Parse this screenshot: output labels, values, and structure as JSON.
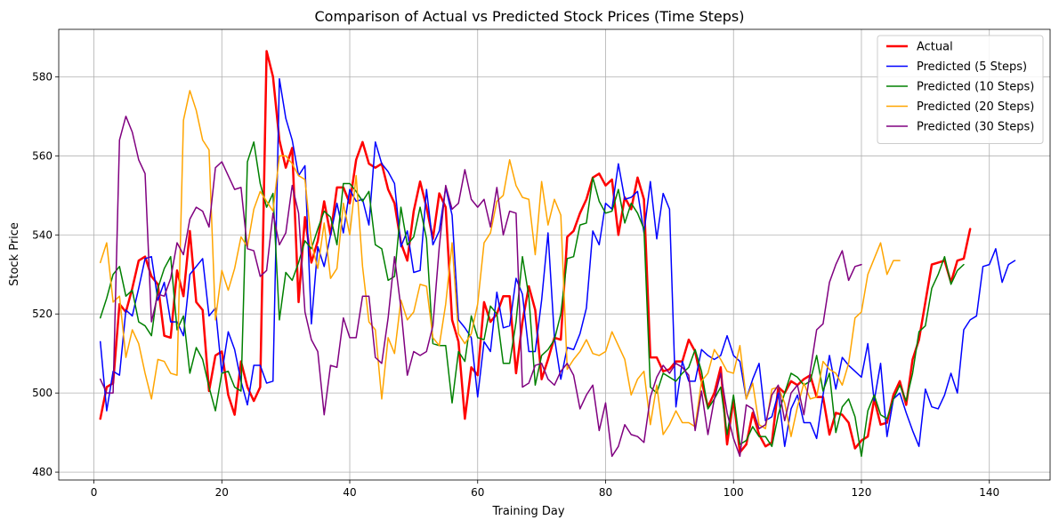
{
  "chart_data": {
    "type": "line",
    "title": "Comparison of Actual vs Predicted Stock Prices (Time Steps)",
    "xlabel": "Training Day",
    "ylabel": "Stock Price",
    "xlim": [
      -5.5,
      149.5
    ],
    "ylim": [
      478,
      592
    ],
    "x_ticks": [
      0,
      20,
      40,
      60,
      80,
      100,
      120,
      140
    ],
    "y_ticks": [
      480,
      500,
      520,
      540,
      560,
      580
    ],
    "grid": true,
    "legend_position": "top-right",
    "series": [
      {
        "name": "Actual",
        "color": "#ff0000",
        "linewidth": 2.5,
        "x_start": 1,
        "values": [
          493.5,
          501.5,
          502.5,
          522.5,
          520.5,
          526.5,
          533.5,
          534.5,
          529.5,
          527.5,
          514.5,
          514,
          531,
          524.5,
          541,
          523,
          521,
          500.5,
          509.5,
          510.5,
          499.5,
          494.5,
          508,
          501.5,
          498,
          501.5,
          586.5,
          580,
          564,
          557,
          562,
          523,
          544.5,
          533,
          538.5,
          548.5,
          540,
          552,
          552,
          548,
          559,
          563.5,
          558,
          557,
          558,
          551.5,
          548,
          538,
          533.5,
          546,
          553.5,
          547,
          539,
          550.5,
          547,
          518.5,
          513,
          493.5,
          506.5,
          504.5,
          523,
          518,
          520,
          524.5,
          524.5,
          505,
          518,
          527,
          521,
          503.5,
          508.5,
          514,
          513.5,
          539.5,
          541,
          545.5,
          549,
          554.5,
          555.5,
          552.5,
          554,
          540,
          549.5,
          546.5,
          554.5,
          549,
          509,
          509,
          505.5,
          506,
          508,
          508,
          513.5,
          510.5,
          503,
          496.5,
          500,
          506.5,
          487,
          498.5,
          485,
          487,
          495,
          489.5,
          486.5,
          487.5,
          501.5,
          500,
          503,
          502,
          503.5,
          504.5,
          499,
          499,
          489.5,
          495,
          494.5,
          492.5,
          486,
          488,
          489,
          498.5,
          492,
          492.5,
          499.5,
          503,
          497,
          508.5,
          513.5,
          523,
          532.5,
          533,
          533.5,
          528,
          533.5,
          534,
          541.5
        ]
      },
      {
        "name": "Predicted (5 Steps)",
        "color": "#0000ff",
        "linewidth": 1.5,
        "x_start": 1,
        "values": [
          513,
          495.5,
          505.5,
          504.5,
          521,
          519.5,
          526.5,
          534,
          534.5,
          523.5,
          528,
          518,
          518,
          514.5,
          530,
          532,
          534,
          519.5,
          521.5,
          505,
          515.5,
          511,
          503,
          497,
          507,
          507,
          502.5,
          503,
          579.5,
          569.5,
          564,
          555,
          557.5,
          517.5,
          537,
          532,
          540,
          548,
          540.5,
          551.5,
          548.5,
          549,
          542.5,
          563.5,
          558,
          556,
          553,
          537,
          541,
          530.5,
          531,
          551.5,
          537.5,
          541,
          552,
          545,
          518.5,
          516.5,
          514,
          499,
          513,
          510.5,
          525.5,
          516.5,
          517,
          529,
          525,
          510.5,
          510.5,
          523.5,
          540.5,
          514,
          503.5,
          511.5,
          511,
          515,
          521.5,
          541,
          537.5,
          548,
          546.5,
          558,
          549,
          549.5,
          551,
          540.5,
          553.5,
          539,
          550.5,
          546.5,
          496.5,
          508,
          503,
          503,
          511,
          509.5,
          508.5,
          509.5,
          514.5,
          509.5,
          508,
          498.5,
          503.5,
          507.5,
          493,
          494,
          500,
          486.5,
          496,
          499.5,
          492.5,
          492.5,
          488.5,
          499.5,
          509.5,
          501,
          509,
          507,
          505.5,
          504,
          512.5,
          498,
          507.5,
          489,
          498.5,
          500,
          495,
          490.5,
          486.5,
          501,
          496.5,
          496,
          499.5,
          505,
          500,
          516,
          518.5,
          519.5,
          532,
          532.5,
          536.5,
          528,
          532.5,
          533.5
        ]
      },
      {
        "name": "Predicted (10 Steps)",
        "color": "#008000",
        "linewidth": 1.5,
        "x_start": 1,
        "values": [
          519,
          524,
          530,
          532,
          524.5,
          526,
          518,
          517,
          514.5,
          526.5,
          531.5,
          534.5,
          516,
          519.5,
          505,
          511.5,
          508.5,
          501.5,
          495.5,
          505,
          505.5,
          501.5,
          500.5,
          558.5,
          563.5,
          553,
          547,
          550.5,
          518.5,
          530.5,
          528.5,
          533,
          538.5,
          536.5,
          541.5,
          546,
          544.5,
          537.5,
          553,
          553,
          551,
          548.5,
          551,
          537.5,
          536.5,
          528.5,
          529.5,
          547,
          537.5,
          539.5,
          547,
          539,
          512.5,
          512,
          512,
          497.5,
          510.5,
          508,
          519.5,
          514,
          513.5,
          522,
          520,
          507.5,
          507.5,
          518,
          534.5,
          524.5,
          502,
          509.5,
          511,
          513.5,
          520,
          534,
          534.5,
          542.5,
          543,
          554.5,
          548.5,
          545.5,
          546,
          551.5,
          543,
          548,
          545.5,
          541.5,
          501.5,
          500,
          505,
          504,
          503,
          505,
          506.5,
          511,
          505.5,
          496,
          498.5,
          501.5,
          489.5,
          499.5,
          487,
          488,
          491.5,
          489,
          489,
          486.5,
          494.5,
          500,
          505,
          504,
          502,
          503,
          509.5,
          500.5,
          505,
          490,
          496.5,
          498.5,
          494,
          484,
          495.5,
          499.5,
          494.5,
          493.5,
          498.5,
          502,
          498,
          505,
          515.5,
          517,
          526.5,
          530,
          534.5,
          527.5,
          531,
          532.5
        ]
      },
      {
        "name": "Predicted (20 Steps)",
        "color": "#ffa500",
        "linewidth": 1.5,
        "x_start": 1,
        "values": [
          533,
          538,
          523,
          524.5,
          509,
          516,
          512.5,
          505,
          498.5,
          508.5,
          508,
          505,
          504.5,
          569,
          576.5,
          571.5,
          564,
          561.5,
          518.5,
          531,
          526,
          531.5,
          539.5,
          537,
          546.5,
          551,
          548.5,
          546,
          560,
          560,
          558,
          555,
          554,
          538,
          531.5,
          543,
          529,
          531.5,
          548,
          540,
          555,
          532,
          518,
          516,
          498.5,
          514,
          510,
          523.5,
          518.5,
          520.5,
          527.5,
          527,
          514,
          512,
          522.5,
          538,
          515,
          512.5,
          515,
          522.5,
          538,
          540.5,
          548.5,
          550,
          559,
          552.5,
          549.5,
          549,
          535,
          553.5,
          542.5,
          549,
          545,
          506,
          508.5,
          510.5,
          513.5,
          510,
          509.5,
          510.5,
          515.5,
          512,
          508.5,
          499.5,
          503.5,
          505.5,
          492,
          502,
          489.5,
          492,
          495.5,
          492.5,
          492.5,
          491.5,
          503,
          505,
          511,
          508.5,
          505.5,
          505,
          512,
          498.5,
          502.5,
          492,
          491,
          501,
          501.5,
          497.5,
          489,
          496.5,
          502.5,
          498.5,
          499,
          508,
          506,
          505,
          502,
          507.5,
          519,
          520.5,
          530,
          534,
          538,
          530,
          533.5,
          533.5
        ]
      },
      {
        "name": "Predicted (30 Steps)",
        "color": "#800080",
        "linewidth": 1.5,
        "x_start": 1,
        "values": [
          503.5,
          500,
          500,
          564,
          570,
          566,
          559,
          555.5,
          518,
          525,
          524.5,
          529,
          538,
          535,
          544,
          547,
          546,
          542,
          557,
          558.5,
          555,
          551.5,
          552,
          536.5,
          536,
          529.5,
          531,
          545.5,
          537.5,
          540.5,
          552.5,
          545.5,
          520.5,
          513.5,
          510.5,
          494.5,
          507,
          506.5,
          519,
          514,
          514,
          524.5,
          524.5,
          509,
          507.5,
          519,
          534.5,
          521.5,
          504.5,
          510.5,
          509.5,
          510.5,
          517,
          537,
          552.5,
          546.5,
          548,
          556.5,
          549,
          547,
          549,
          542,
          552,
          540,
          546,
          545.5,
          501.5,
          502.5,
          507,
          507.5,
          503.5,
          502,
          505.5,
          507.5,
          504.5,
          496,
          499.5,
          502,
          490.5,
          497.5,
          484,
          486.5,
          492,
          489.5,
          489,
          487.5,
          499,
          504,
          507,
          505,
          507.5,
          506.5,
          504.5,
          490.5,
          500.5,
          489.5,
          498.5,
          505,
          495,
          488.5,
          484,
          497,
          496,
          491,
          492,
          499.5,
          502,
          493,
          500,
          502,
          494.5,
          505.5,
          516,
          517.5,
          528,
          532.5,
          536,
          528.5,
          532,
          532.5
        ]
      }
    ]
  }
}
